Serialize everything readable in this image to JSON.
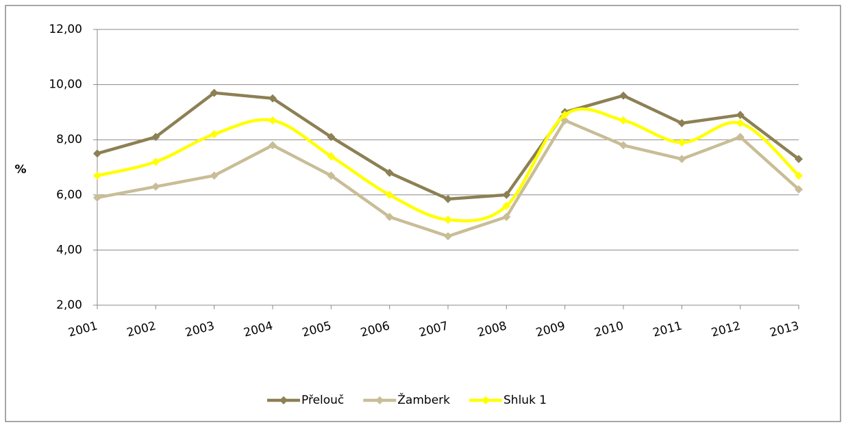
{
  "chart_data": {
    "type": "line",
    "ylabel": "%",
    "categories": [
      "2001",
      "2002",
      "2003",
      "2004",
      "2005",
      "2006",
      "2007",
      "2008",
      "2009",
      "2010",
      "2011",
      "2012",
      "2013"
    ],
    "series": [
      {
        "name": "Přelouč",
        "color": "#8c8054",
        "smooth": false,
        "values": [
          7.5,
          8.1,
          9.7,
          9.5,
          8.1,
          6.8,
          5.85,
          6.0,
          9.0,
          9.6,
          8.6,
          8.9,
          7.3
        ]
      },
      {
        "name": "Žamberk",
        "color": "#c9bd97",
        "smooth": false,
        "values": [
          5.9,
          6.3,
          6.7,
          7.8,
          6.7,
          5.2,
          4.5,
          5.2,
          8.7,
          7.8,
          7.3,
          8.1,
          6.2
        ]
      },
      {
        "name": "Shluk 1",
        "color": "#ffff00",
        "smooth": true,
        "values": [
          6.7,
          7.2,
          8.2,
          8.7,
          7.4,
          6.0,
          5.1,
          5.6,
          8.9,
          8.7,
          7.9,
          8.6,
          6.7
        ]
      }
    ],
    "ylim": [
      2,
      12
    ],
    "yticks": [
      {
        "value": 2,
        "label": "2,00"
      },
      {
        "value": 4,
        "label": "4,00"
      },
      {
        "value": 6,
        "label": "6,00"
      },
      {
        "value": 8,
        "label": "8,00"
      },
      {
        "value": 10,
        "label": "10,00"
      },
      {
        "value": 12,
        "label": "12,00"
      }
    ],
    "grid": true,
    "legend": "bottom"
  }
}
